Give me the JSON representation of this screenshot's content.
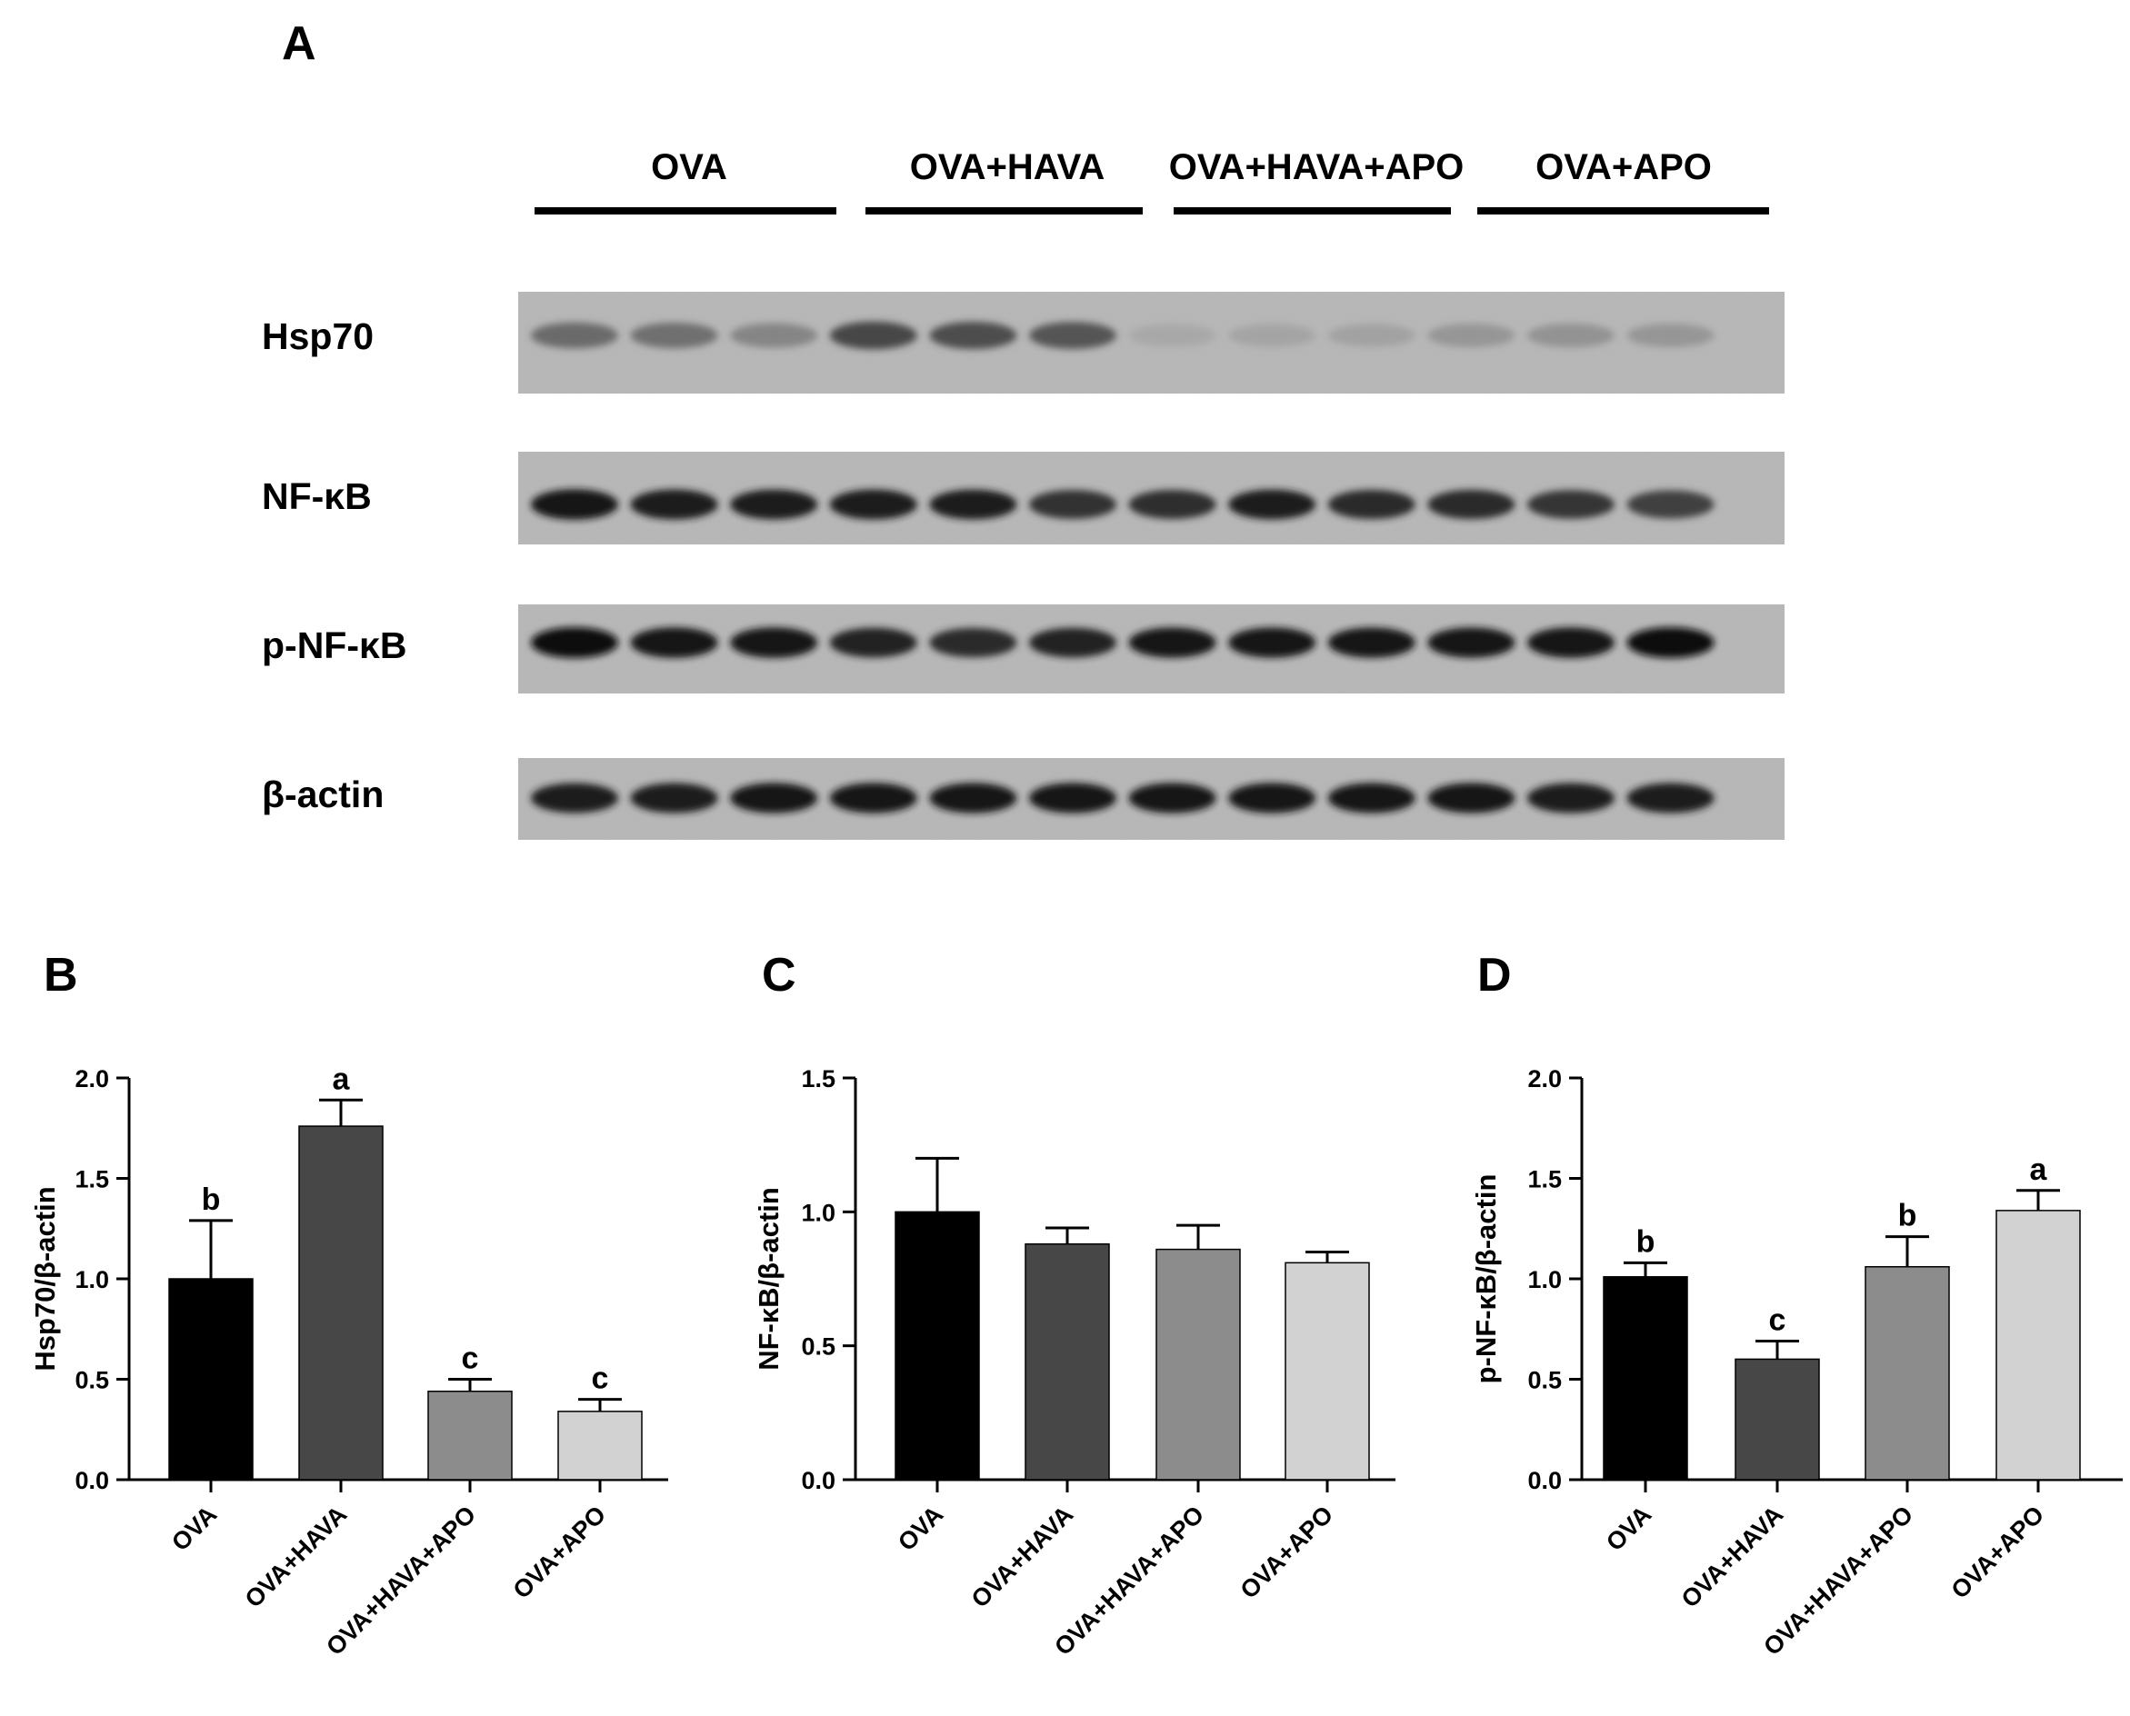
{
  "western_blot": {
    "panel_letter": "A",
    "groups": [
      "OVA",
      "OVA+HAVA",
      "OVA+HAVA+APO",
      "OVA+APO"
    ],
    "lanes_per_group": 3,
    "proteins": [
      {
        "name": "Hsp70",
        "band_intensity": [
          0.45,
          0.42,
          0.3,
          0.65,
          0.62,
          0.58,
          0.1,
          0.12,
          0.13,
          0.2,
          0.22,
          0.2
        ]
      },
      {
        "name": "NF-κB",
        "band_intensity": [
          0.95,
          0.9,
          0.88,
          0.9,
          0.88,
          0.78,
          0.8,
          0.88,
          0.82,
          0.82,
          0.75,
          0.7
        ]
      },
      {
        "name": "p-NF-κB",
        "band_intensity": [
          0.98,
          0.95,
          0.95,
          0.85,
          0.82,
          0.85,
          0.92,
          0.92,
          0.92,
          0.92,
          0.95,
          0.98
        ]
      },
      {
        "name": "β-actin",
        "band_intensity": [
          0.88,
          0.9,
          0.92,
          0.92,
          0.92,
          0.92,
          0.92,
          0.92,
          0.92,
          0.92,
          0.9,
          0.9
        ]
      }
    ]
  },
  "chart_data": [
    {
      "panel_letter": "B",
      "type": "bar",
      "categories": [
        "OVA",
        "OVA+HAVA",
        "OVA+HAVA+APO",
        "OVA+APO"
      ],
      "values": [
        1.0,
        1.76,
        0.44,
        0.34
      ],
      "errors": [
        0.29,
        0.13,
        0.06,
        0.06
      ],
      "significance": [
        "b",
        "a",
        "c",
        "c"
      ],
      "ylabel": "Hsp70/β-actin",
      "ylim": [
        0,
        2.0
      ],
      "yticks": [
        "0.0",
        "0.5",
        "1.0",
        "1.5",
        "2.0"
      ],
      "bar_colors": [
        "#000000",
        "#474747",
        "#8c8c8c",
        "#d2d2d2"
      ]
    },
    {
      "panel_letter": "C",
      "type": "bar",
      "categories": [
        "OVA",
        "OVA+HAVA",
        "OVA+HAVA+APO",
        "OVA+APO"
      ],
      "values": [
        1.0,
        0.88,
        0.86,
        0.81
      ],
      "errors": [
        0.2,
        0.06,
        0.09,
        0.04
      ],
      "significance": [
        "",
        "",
        "",
        ""
      ],
      "ylabel": "NF-κB/β-actin",
      "ylim": [
        0,
        1.5
      ],
      "yticks": [
        "0.0",
        "0.5",
        "1.0",
        "1.5"
      ],
      "bar_colors": [
        "#000000",
        "#474747",
        "#8c8c8c",
        "#d2d2d2"
      ]
    },
    {
      "panel_letter": "D",
      "type": "bar",
      "categories": [
        "OVA",
        "OVA+HAVA",
        "OVA+HAVA+APO",
        "OVA+APO"
      ],
      "values": [
        1.01,
        0.6,
        1.06,
        1.34
      ],
      "errors": [
        0.07,
        0.09,
        0.15,
        0.1
      ],
      "significance": [
        "b",
        "c",
        "b",
        "a"
      ],
      "ylabel": "p-NF-κB/β-actin",
      "ylim": [
        0,
        2.0
      ],
      "yticks": [
        "0.0",
        "0.5",
        "1.0",
        "1.5",
        "2.0"
      ],
      "bar_colors": [
        "#000000",
        "#474747",
        "#8c8c8c",
        "#d2d2d2"
      ]
    }
  ]
}
